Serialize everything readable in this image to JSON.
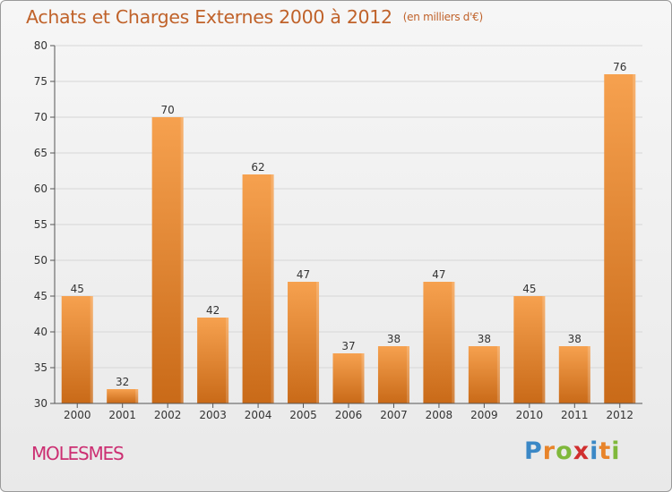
{
  "title": "Achats et Charges Externes 2000 à 2012",
  "unit": "(en milliers d'€)",
  "commune": "MOLESMES",
  "logo": {
    "letters": [
      "P",
      "r",
      "o",
      "x",
      "i",
      "t",
      "i"
    ],
    "colors": [
      "#3b88c6",
      "#e8842a",
      "#7fb83b",
      "#d02e2e",
      "#3b88c6",
      "#e8842a",
      "#7fb83b"
    ]
  },
  "colors": {
    "bar_top": "#f6a14f",
    "bar_bottom": "#c96a18",
    "title": "#c0622a",
    "commune": "#cc2f72"
  },
  "chart_data": {
    "type": "bar",
    "title": "Achats et Charges Externes 2000 à 2012",
    "subtitle": "(en milliers d'€)",
    "xlabel": "",
    "ylabel": "",
    "categories": [
      "2000",
      "2001",
      "2002",
      "2003",
      "2004",
      "2005",
      "2006",
      "2007",
      "2008",
      "2009",
      "2010",
      "2011",
      "2012"
    ],
    "values": [
      45,
      32,
      70,
      42,
      62,
      47,
      37,
      38,
      47,
      38,
      45,
      38,
      76
    ],
    "ylim": [
      30,
      80
    ],
    "yticks": [
      30,
      35,
      40,
      45,
      50,
      55,
      60,
      65,
      70,
      75,
      80
    ],
    "grid": true,
    "legend": "none"
  }
}
